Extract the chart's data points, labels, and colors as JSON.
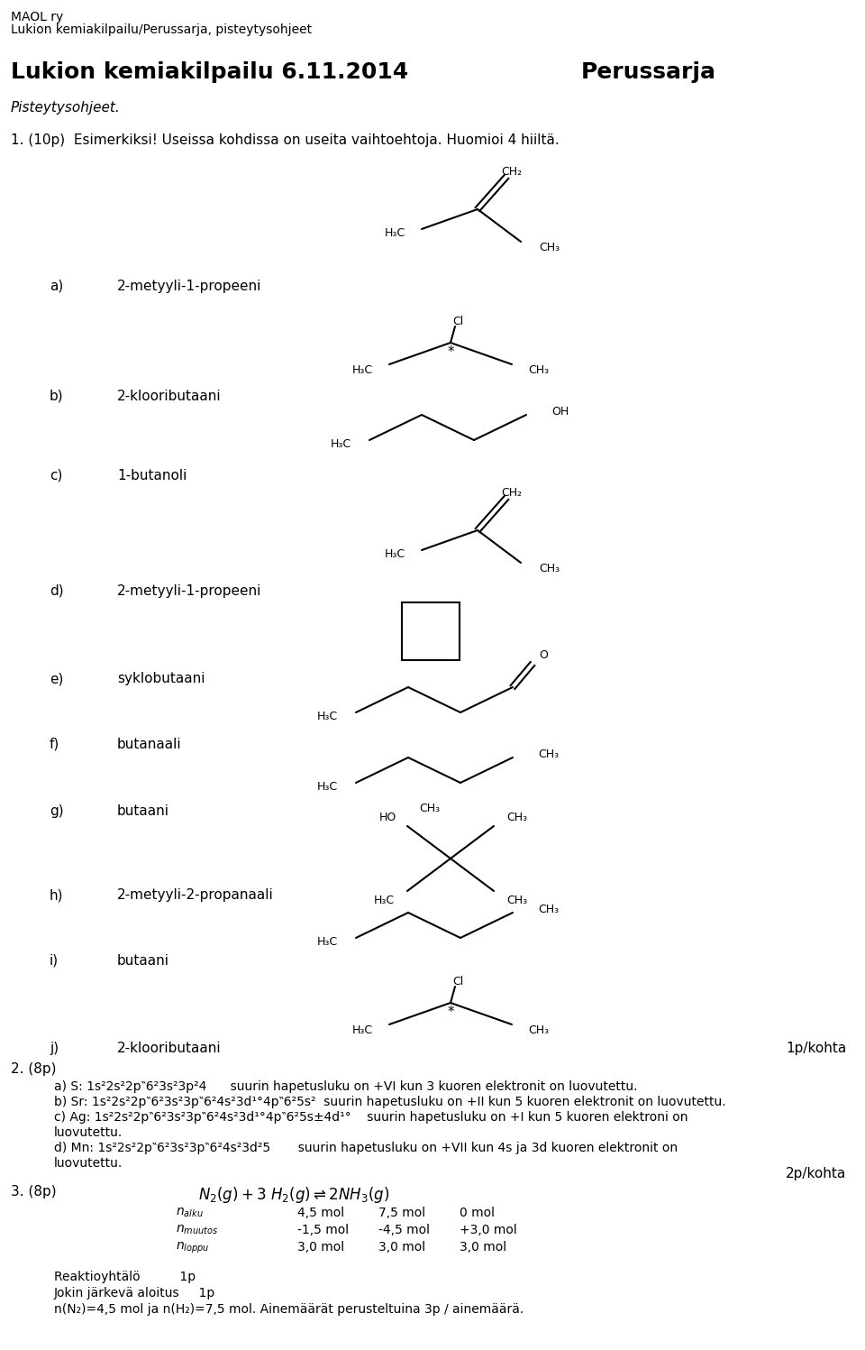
{
  "header_line1": "MAOL ry",
  "header_line2": "Lukion kemiakilpailu/Perussarja, pisteytysohjeet",
  "title_left": "Lukion kemiakilpailu 6.11.2014",
  "title_right": "Perussarja",
  "subtitle": "Pisteytysohjeet.",
  "problem1_header": "1. (10p)  Esimerkiksi! Useissa kohdissa on useita vaihtoehtoja. Huomioi 4 hiiltä.",
  "score_1p": "1p/kohta",
  "problem2_header": "2. (8p)",
  "score_2p": "2p/kohta",
  "problem3_header": "3. (8p)",
  "bg_color": "#ffffff",
  "text_color": "#000000"
}
